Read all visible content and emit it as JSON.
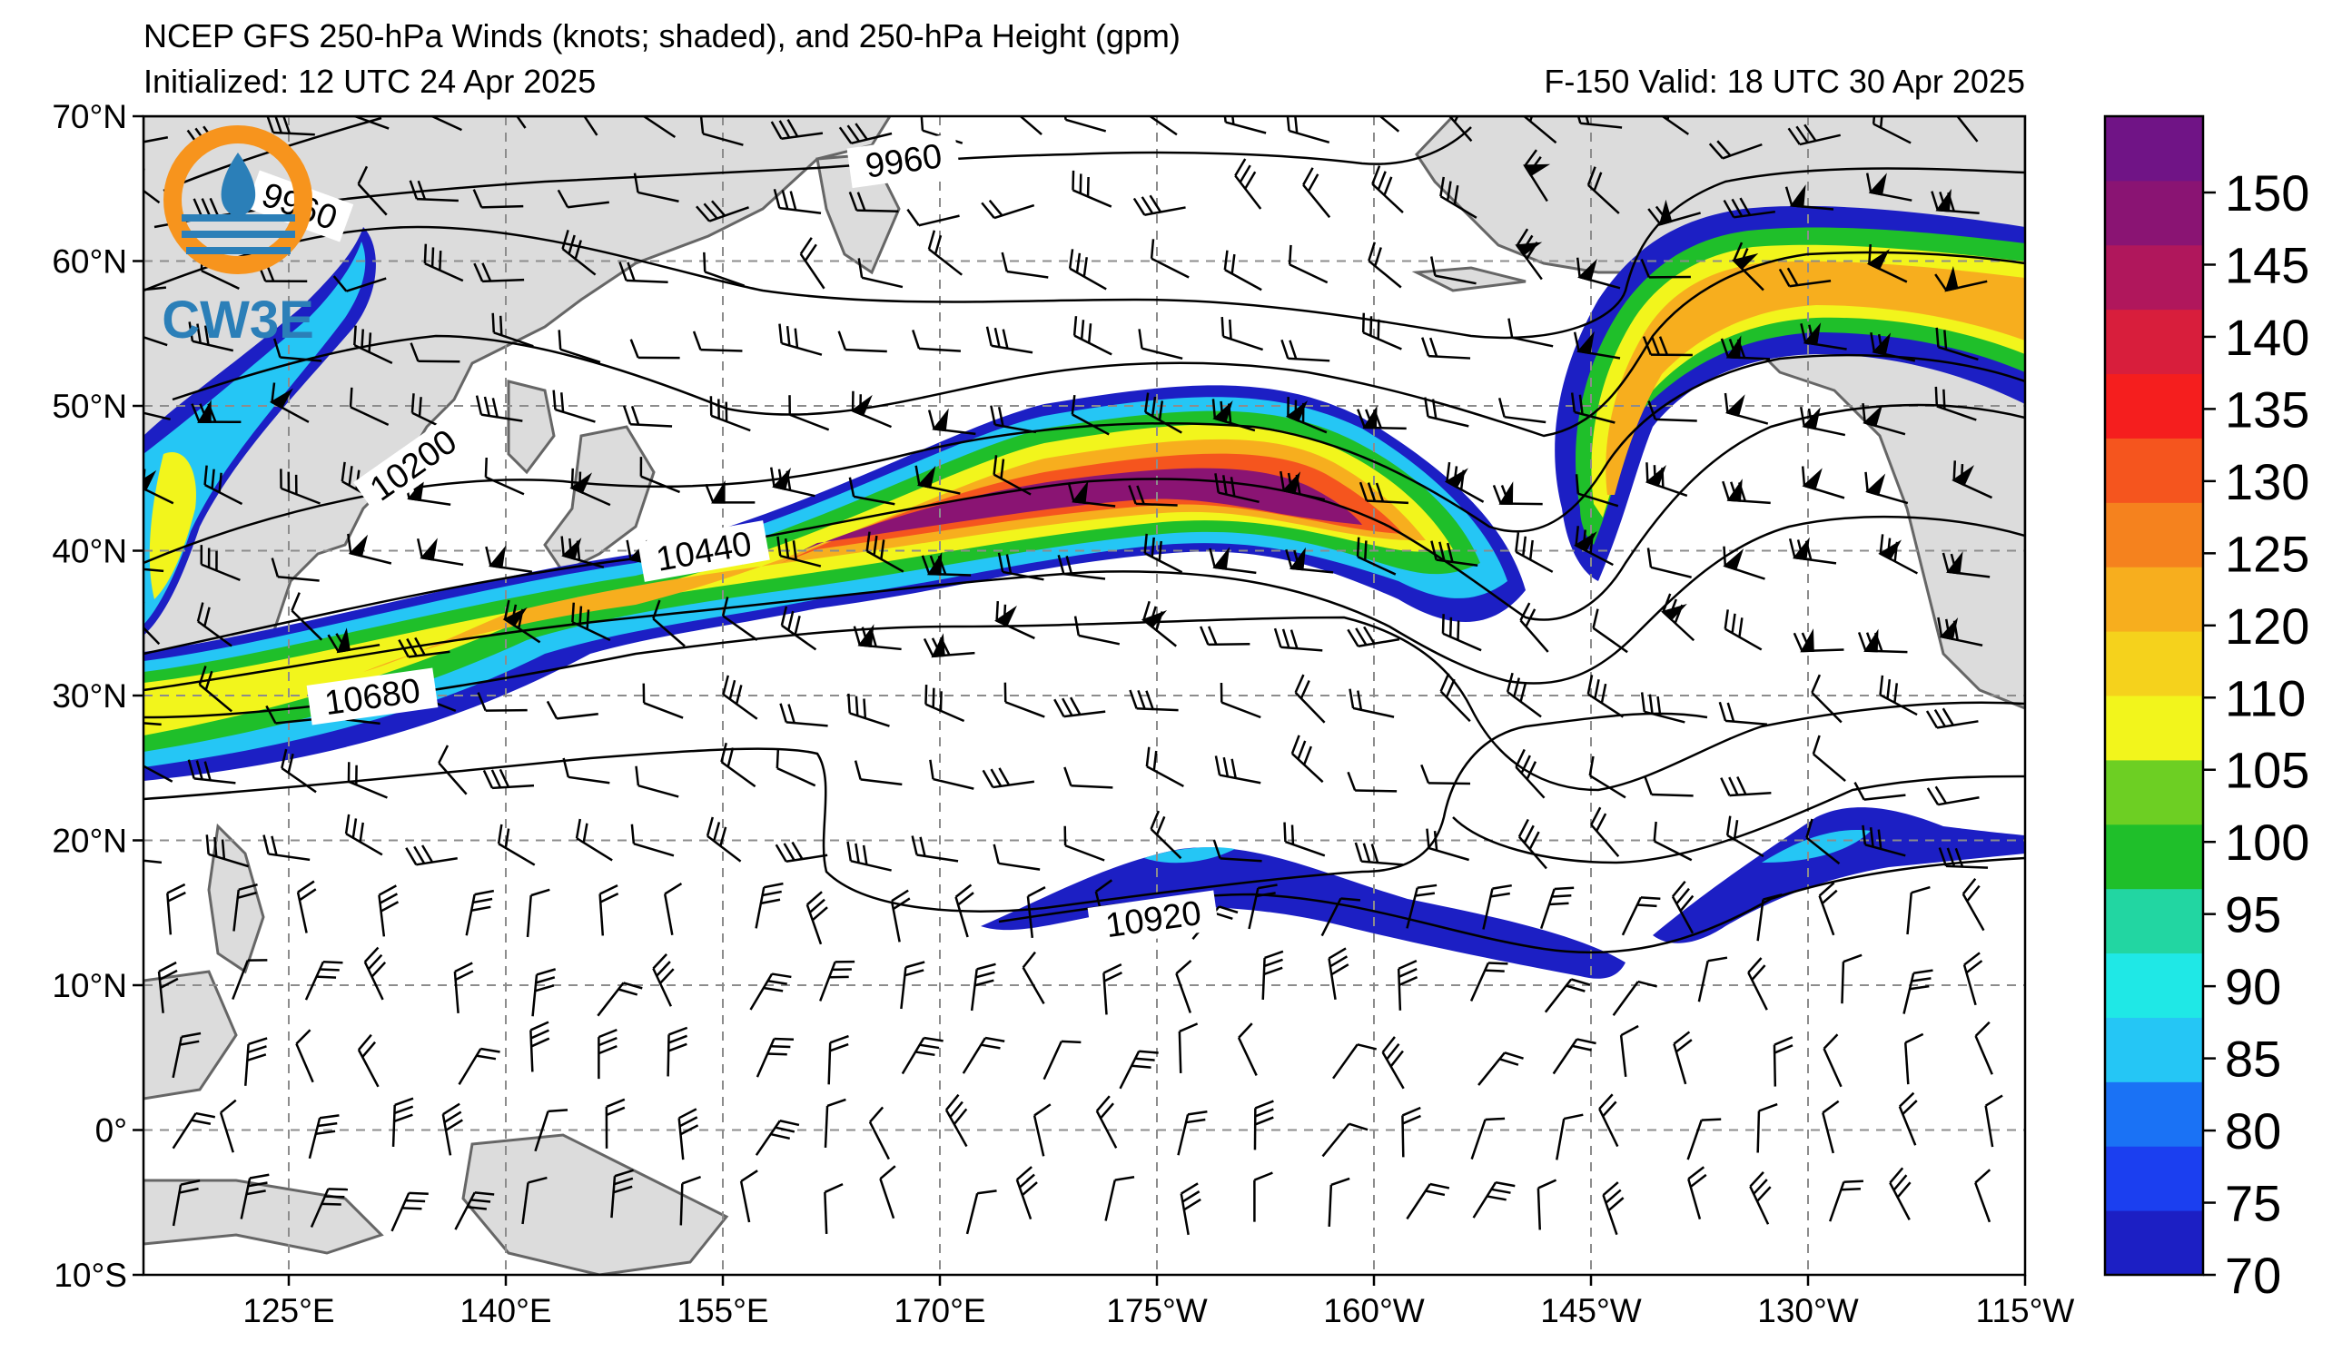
{
  "title": {
    "line1": "NCEP GFS 250-hPa Winds (knots; shaded), and 250-hPa Height (gpm)",
    "init": "Initialized: 12 UTC 24 Apr 2025",
    "valid": "F-150  Valid: 18 UTC 30 Apr 2025"
  },
  "logo": {
    "text": "CW3E",
    "icon": "cw3e-logo-icon"
  },
  "map": {
    "lat_labels": [
      "70°N",
      "60°N",
      "50°N",
      "40°N",
      "30°N",
      "20°N",
      "10°N",
      "0°",
      "10°S"
    ],
    "lon_labels": [
      "125°E",
      "140°E",
      "155°E",
      "170°E",
      "175°W",
      "160°W",
      "145°W",
      "130°W",
      "115°W"
    ],
    "contour_labels": [
      "9960",
      "9960",
      "10200",
      "10440",
      "10680",
      "10920"
    ]
  },
  "colorbar": {
    "ticks": [
      "150",
      "145",
      "140",
      "135",
      "130",
      "125",
      "120",
      "110",
      "105",
      "100",
      "95",
      "90",
      "85",
      "80",
      "75",
      "70"
    ],
    "colors": [
      "#1c1fc4",
      "#1b3ff0",
      "#1a72f5",
      "#25c6f5",
      "#1fe8e6",
      "#22d6a2",
      "#1fbf2a",
      "#6dcf23",
      "#f2f51c",
      "#f5d21c",
      "#f7ae1e",
      "#f5821e",
      "#f5551e",
      "#f51e1e",
      "#d81e3c",
      "#b0175c",
      "#8a1473",
      "#701486"
    ]
  },
  "colors": {
    "land": "#dcdcdc",
    "coast": "#666666",
    "grid": "#8c8c8c",
    "contour": "#000000"
  }
}
